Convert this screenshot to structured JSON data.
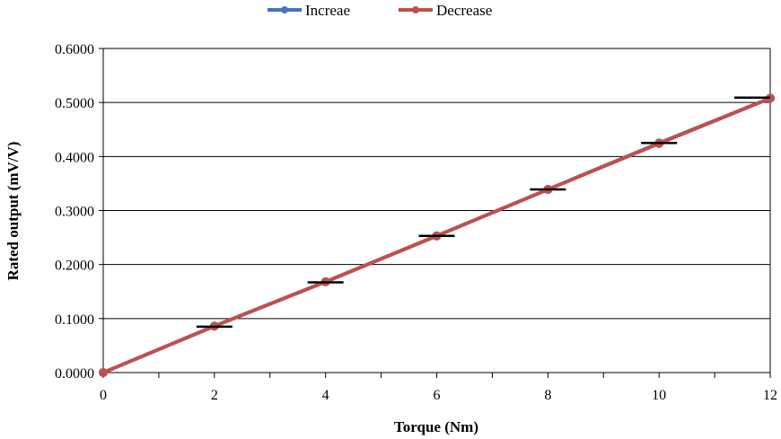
{
  "chart_data": {
    "type": "line",
    "title": "",
    "xlabel": "Torque (Nm)",
    "ylabel": "Rated output (mV/V)",
    "xlim": [
      0,
      12
    ],
    "ylim": [
      0,
      0.6
    ],
    "xticks": [
      "0",
      "2",
      "4",
      "6",
      "8",
      "10",
      "12"
    ],
    "yticks": [
      "0.0000",
      "0.1000",
      "0.2000",
      "0.3000",
      "0.4000",
      "0.5000",
      "0.6000"
    ],
    "grid": "horizontal",
    "legend_position": "top",
    "x": [
      0,
      2,
      4,
      6,
      8,
      10,
      12
    ],
    "series": [
      {
        "name": "Increae",
        "color": "#4472C4",
        "values": [
          0,
          0.086,
          0.168,
          0.253,
          0.339,
          0.425,
          0.508
        ]
      },
      {
        "name": "Decrease",
        "color": "#C0504D",
        "values": [
          0,
          0.086,
          0.168,
          0.253,
          0.339,
          0.424,
          0.508
        ]
      }
    ],
    "error_bars": {
      "x": [
        2,
        4,
        6,
        8,
        10,
        12
      ],
      "y": [
        0.085,
        0.167,
        0.253,
        0.339,
        0.425,
        0.509
      ],
      "color": "#000000"
    }
  }
}
